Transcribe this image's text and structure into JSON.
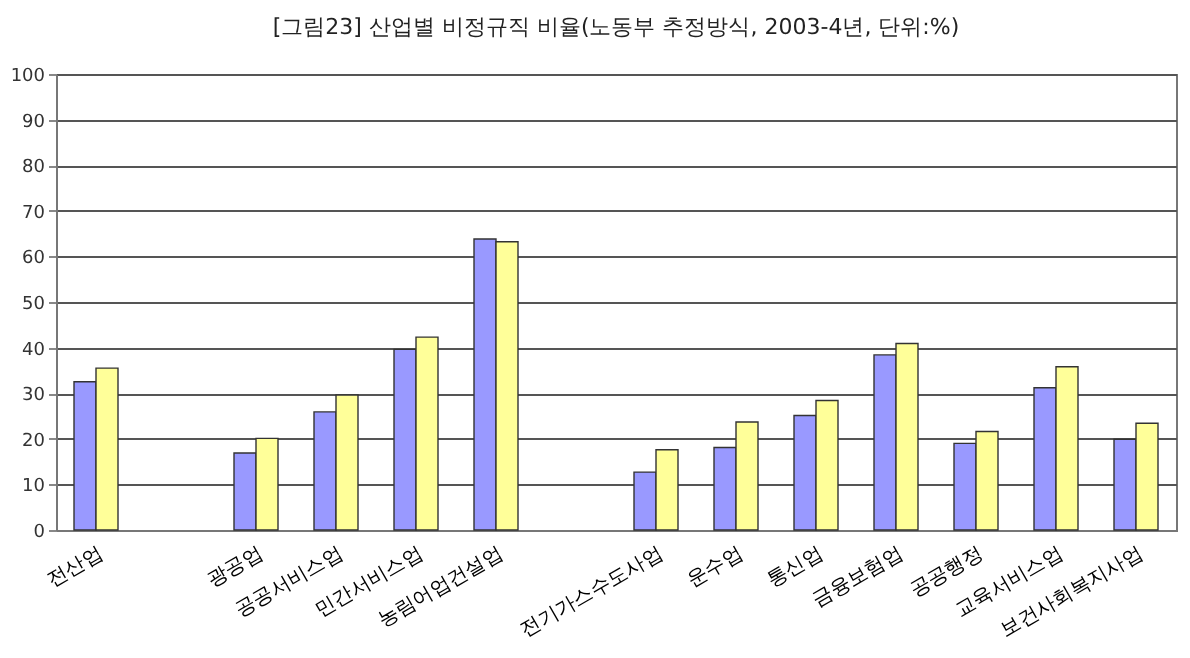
{
  "chart_data": {
    "type": "bar",
    "title": "[그림23] 산업별 비정규직 비율(노동부 추정방식, 2003-4년, 단위:%)",
    "categories": [
      "전산업",
      null,
      "광공업",
      "공공서비스업",
      "민간서비스업",
      "농림어업건설업",
      null,
      "전기가스수도사업",
      "운수업",
      "통신업",
      "금융보험업",
      "공공행정",
      "교육서비스업",
      "보건사회복지사업"
    ],
    "series": [
      {
        "color": "#9999ff",
        "values": [
          32.5,
          null,
          16.9,
          25.9,
          39.6,
          63.8,
          null,
          12.7,
          18.1,
          25.1,
          38.4,
          19.0,
          31.2,
          19.9
        ]
      },
      {
        "color": "#ffff99",
        "values": [
          35.5,
          null,
          20.1,
          29.6,
          42.3,
          63.2,
          null,
          17.6,
          23.7,
          28.4,
          40.9,
          21.6,
          35.8,
          23.4
        ]
      }
    ],
    "ylim": [
      0,
      100
    ],
    "yticks": [
      0,
      10,
      20,
      30,
      40,
      50,
      60,
      70,
      80,
      90,
      100
    ],
    "grid": "y"
  }
}
